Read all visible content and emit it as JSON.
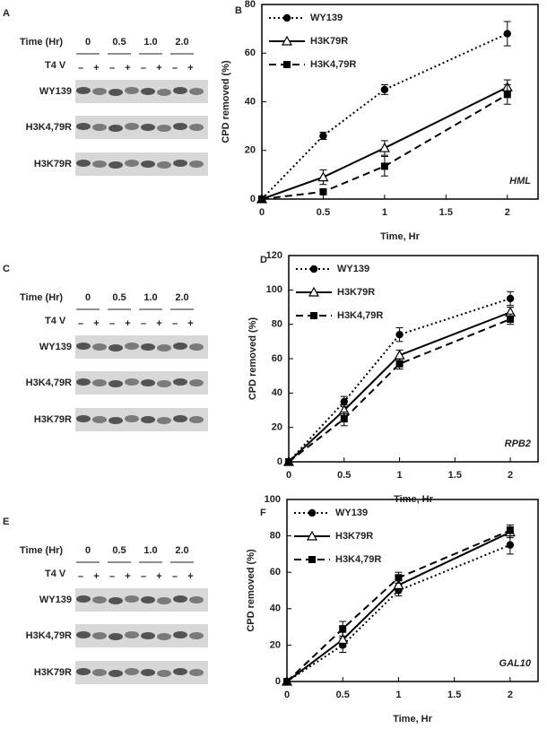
{
  "gels": [
    {
      "label": "A",
      "time_label": "Time (Hr)",
      "times": [
        "0",
        "0.5",
        "1.0",
        "2.0"
      ],
      "treatment": "T4 V",
      "signs": [
        "–",
        "+",
        "–",
        "+",
        "–",
        "+",
        "–",
        "+"
      ],
      "rows": [
        "WY139",
        "H3K4,79R",
        "H3K79R"
      ]
    },
    {
      "label": "C",
      "time_label": "Time (Hr)",
      "times": [
        "0",
        "0.5",
        "1.0",
        "2.0"
      ],
      "treatment": "T4 V",
      "signs": [
        "–",
        "+",
        "–",
        "+",
        "–",
        "+",
        "–",
        "+"
      ],
      "rows": [
        "WY139",
        "H3K4,79R",
        "H3K79R"
      ]
    },
    {
      "label": "E",
      "time_label": "Time (Hr)",
      "times": [
        "0",
        "0.5",
        "1.0",
        "2.0"
      ],
      "treatment": "T4 V",
      "signs": [
        "–",
        "+",
        "–",
        "+",
        "–",
        "+",
        "–",
        "+"
      ],
      "rows": [
        "WY139",
        "H3K4,79R",
        "H3K79R"
      ]
    }
  ],
  "chart_data": [
    {
      "type": "line",
      "label": "B",
      "annotation": "HML",
      "xlabel": "Time, Hr",
      "ylabel": "CPD removed (%)",
      "x": [
        0,
        0.5,
        1,
        2
      ],
      "xlim": [
        0,
        2.25
      ],
      "xticks": [
        0,
        0.5,
        1,
        1.5,
        2
      ],
      "ylim": [
        0,
        80
      ],
      "yticks": [
        0,
        20,
        40,
        60,
        80
      ],
      "series": [
        {
          "name": "WY139",
          "color": "#000000",
          "marker": "circle",
          "line_style": "dotted",
          "values": [
            0,
            26,
            45,
            68
          ],
          "errors": [
            0,
            1.5,
            2,
            5
          ]
        },
        {
          "name": "H3K79R",
          "color": "#000000",
          "marker": "triangle",
          "line_style": "solid",
          "values": [
            0,
            9,
            21,
            46
          ],
          "errors": [
            0,
            3,
            3,
            3
          ]
        },
        {
          "name": "H3K4,79R",
          "color": "#000000",
          "marker": "square",
          "line_style": "dashed",
          "values": [
            0,
            3,
            13.5,
            43
          ],
          "errors": [
            0,
            1,
            4,
            4
          ]
        }
      ]
    },
    {
      "type": "line",
      "label": "D",
      "annotation": "RPB2",
      "xlabel": "Time, Hr",
      "ylabel": "CPD removed (%)",
      "x": [
        0,
        0.5,
        1,
        2
      ],
      "xlim": [
        0,
        2.25
      ],
      "xticks": [
        0,
        0.5,
        1,
        1.5,
        2
      ],
      "ylim": [
        0,
        120
      ],
      "yticks": [
        0,
        20,
        40,
        60,
        80,
        100,
        120
      ],
      "series": [
        {
          "name": "WY139",
          "color": "#000000",
          "marker": "circle",
          "line_style": "dotted",
          "values": [
            0,
            35,
            74,
            95
          ],
          "errors": [
            0,
            3,
            4,
            4
          ]
        },
        {
          "name": "H3K79R",
          "color": "#000000",
          "marker": "triangle",
          "line_style": "solid",
          "values": [
            0,
            30,
            62,
            87
          ],
          "errors": [
            0,
            3,
            3,
            3
          ]
        },
        {
          "name": "H3K4,79R",
          "color": "#000000",
          "marker": "square",
          "line_style": "dashed",
          "values": [
            0,
            25,
            57,
            83
          ],
          "errors": [
            0,
            4,
            3,
            3
          ]
        }
      ]
    },
    {
      "type": "line",
      "label": "F",
      "annotation": "GAL10",
      "xlabel": "Time, Hr",
      "ylabel": "CPD removed (%)",
      "x": [
        0,
        0.5,
        1,
        2
      ],
      "xlim": [
        0,
        2.25
      ],
      "xticks": [
        0,
        0.5,
        1,
        1.5,
        2
      ],
      "ylim": [
        0,
        100
      ],
      "yticks": [
        0,
        20,
        40,
        60,
        80,
        100
      ],
      "series": [
        {
          "name": "WY139",
          "color": "#000000",
          "marker": "circle",
          "line_style": "dotted",
          "values": [
            0,
            20,
            50,
            75
          ],
          "errors": [
            0,
            4,
            3,
            5
          ]
        },
        {
          "name": "H3K79R",
          "color": "#000000",
          "marker": "triangle",
          "line_style": "solid",
          "values": [
            0,
            23,
            53,
            82
          ],
          "errors": [
            0,
            4,
            3,
            3
          ]
        },
        {
          "name": "H3K4,79R",
          "color": "#000000",
          "marker": "square",
          "line_style": "dashed",
          "values": [
            0,
            29,
            57,
            83
          ],
          "errors": [
            0,
            4,
            3,
            3
          ]
        }
      ]
    }
  ]
}
